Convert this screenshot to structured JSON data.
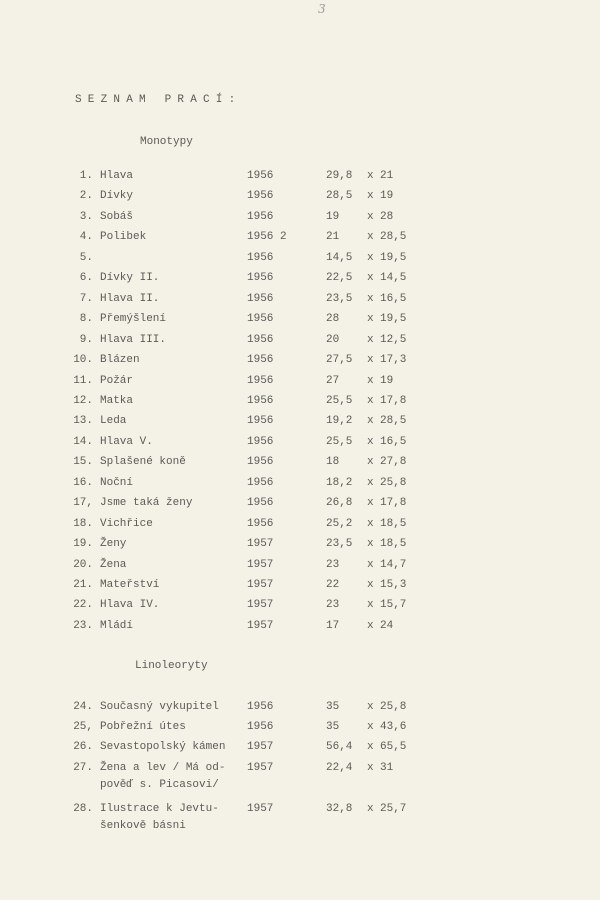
{
  "page_number": "3",
  "title": "SEZNAM PRACÍ:",
  "sections": [
    {
      "heading": "Monotypy",
      "items": [
        {
          "num": "1.",
          "name": "Hlava",
          "year": "1956",
          "w": "29,8",
          "x": "x",
          "h": "21"
        },
        {
          "num": "2.",
          "name": "Dívky",
          "year": "1956",
          "w": "28,5",
          "x": "x",
          "h": "19"
        },
        {
          "num": "3.",
          "name": "Sobáš",
          "year": "1956",
          "w": "19",
          "x": "x",
          "h": "28"
        },
        {
          "num": "4.",
          "name": "Polibek",
          "year": "1956 2",
          "w": "21",
          "x": "x",
          "h": "28,5"
        },
        {
          "num": "5.",
          "name": "",
          "year": "1956",
          "w": "14,5",
          "x": "x",
          "h": "19,5"
        },
        {
          "num": "6.",
          "name": "Dívky II.",
          "year": "1956",
          "w": "22,5",
          "x": "x",
          "h": "14,5"
        },
        {
          "num": "7.",
          "name": "Hlava II.",
          "year": "1956",
          "w": "23,5",
          "x": "x",
          "h": "16,5"
        },
        {
          "num": "8.",
          "name": "Přemýšlení",
          "year": "1956",
          "w": "28",
          "x": "x",
          "h": "19,5"
        },
        {
          "num": "9.",
          "name": "Hlava III.",
          "year": "1956",
          "w": "20",
          "x": "x",
          "h": "12,5"
        },
        {
          "num": "10.",
          "name": "Blázen",
          "year": "1956",
          "w": "27,5",
          "x": "x",
          "h": "17,3"
        },
        {
          "num": "11.",
          "name": "Požár",
          "year": "1956",
          "w": "27",
          "x": "x",
          "h": "19"
        },
        {
          "num": "12.",
          "name": "Matka",
          "year": "1956",
          "w": "25,5",
          "x": "x",
          "h": "17,8"
        },
        {
          "num": "13.",
          "name": "Leda",
          "year": "1956",
          "w": "19,2",
          "x": "x",
          "h": "28,5"
        },
        {
          "num": "14.",
          "name": "Hlava V.",
          "year": "1956",
          "w": "25,5",
          "x": "x",
          "h": "16,5"
        },
        {
          "num": "15.",
          "name": "Splašené koně",
          "year": "1956",
          "w": "18",
          "x": "x",
          "h": "27,8"
        },
        {
          "num": "16.",
          "name": "Noční",
          "year": "1956",
          "w": "18,2",
          "x": "x",
          "h": "25,8"
        },
        {
          "num": "17,",
          "name": "Jsme taká ženy",
          "year": "1956",
          "w": "26,8",
          "x": "x",
          "h": "17,8"
        },
        {
          "num": "18.",
          "name": "Vichřice",
          "year": "1956",
          "w": "25,2",
          "x": "x",
          "h": "18,5"
        },
        {
          "num": "19.",
          "name": "Ženy",
          "year": "1957",
          "w": "23,5",
          "x": "x",
          "h": "18,5"
        },
        {
          "num": "20.",
          "name": "Žena",
          "year": "1957",
          "w": "23",
          "x": "x",
          "h": "14,7"
        },
        {
          "num": "21.",
          "name": "Mateřství",
          "year": "1957",
          "w": "22",
          "x": "x",
          "h": "15,3"
        },
        {
          "num": "22.",
          "name": "Hlava IV.",
          "year": "1957",
          "w": "23",
          "x": "x",
          "h": "15,7"
        },
        {
          "num": "23.",
          "name": "Mládí",
          "year": "1957",
          "w": "17",
          "x": "x",
          "h": "24"
        }
      ]
    },
    {
      "heading": "Linoleoryty",
      "items": [
        {
          "num": "24.",
          "name": "Současný vykupitel",
          "year": "1956",
          "w": "35",
          "x": "x",
          "h": "25,8"
        },
        {
          "num": "25,",
          "name": "Pobřežní útes",
          "year": "1956",
          "w": "35",
          "x": "x",
          "h": "43,6"
        },
        {
          "num": "26.",
          "name": "Sevastopolský kámen",
          "year": "1957",
          "w": "56,4",
          "x": "x",
          "h": "65,5"
        },
        {
          "num": "27.",
          "name": "Žena a lev / Má od-",
          "name2": "pověď s. Picasovi/",
          "year": "1957",
          "w": "22,4",
          "x": "x",
          "h": "31"
        },
        {
          "num": "28.",
          "name": "Ilustrace k Jevtu-",
          "name2": "šenkově básni",
          "year": "1957",
          "w": "32,8",
          "x": "x",
          "h": "25,7"
        }
      ]
    }
  ]
}
